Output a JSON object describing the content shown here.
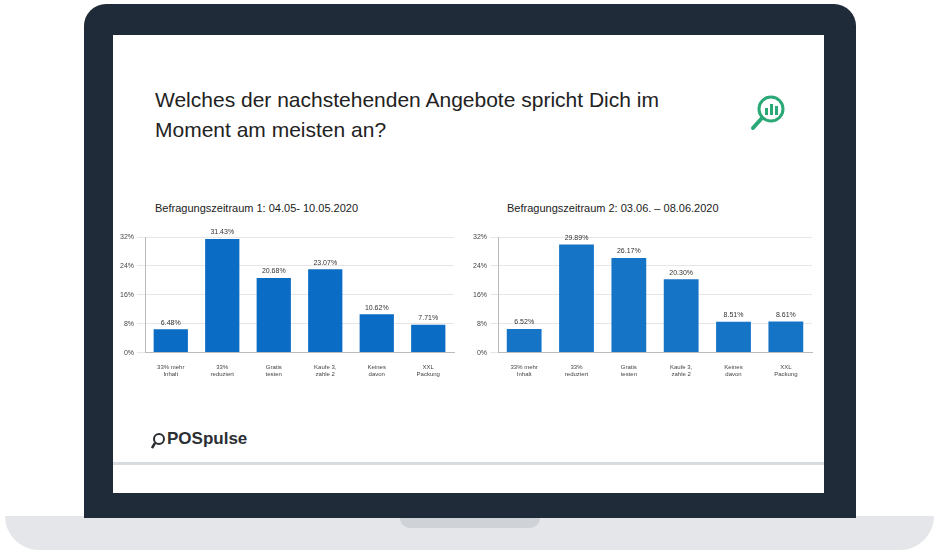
{
  "slide_title": "Welches der nachstehenden Angebote spricht Dich im Moment am meisten an?",
  "logo": "POSpulse",
  "chart_data": [
    {
      "type": "bar",
      "title": "Befragungszeitraum 1: 04.05- 10.05.2020",
      "categories": [
        "33% mehr Inhalt",
        "33% reduziert",
        "Gratis testen",
        "Kaufe 3, zahle 2",
        "Keines davon",
        "XXL Packung"
      ],
      "values": [
        6.48,
        31.43,
        20.68,
        23.07,
        10.62,
        7.71
      ],
      "value_labels": [
        "6.48%",
        "31.43%",
        "20.68%",
        "23.07%",
        "10.62%",
        "7.71%"
      ],
      "color": "#0a6cc4",
      "ylim": [
        0,
        32
      ],
      "yticks": [
        {
          "value": 0,
          "label": "0%"
        },
        {
          "value": 8,
          "label": "8%"
        },
        {
          "value": 16,
          "label": "16%"
        },
        {
          "value": 24,
          "label": "24%"
        },
        {
          "value": 32,
          "label": "32%"
        }
      ],
      "grid": true,
      "data_labels": true
    },
    {
      "type": "bar",
      "title": "Befragungszeitraum 2: 03.06. – 08.06.2020",
      "categories": [
        "33% mehr Inhalt",
        "33% reduziert",
        "Gratis testen",
        "Kaufe 3, zahle 2",
        "Keines davon",
        "XXL Packung"
      ],
      "values": [
        6.52,
        29.89,
        26.17,
        20.3,
        8.51,
        8.61
      ],
      "value_labels": [
        "6.52%",
        "29.89%",
        "26.17%",
        "20.30%",
        "8.51%",
        "8.61%"
      ],
      "color": "#1574c6",
      "ylim": [
        0,
        32
      ],
      "yticks": [
        {
          "value": 0,
          "label": "0%"
        },
        {
          "value": 8,
          "label": "8%"
        },
        {
          "value": 16,
          "label": "16%"
        },
        {
          "value": 24,
          "label": "24%"
        },
        {
          "value": 32,
          "label": "32%"
        }
      ],
      "grid": true,
      "data_labels": true
    }
  ]
}
